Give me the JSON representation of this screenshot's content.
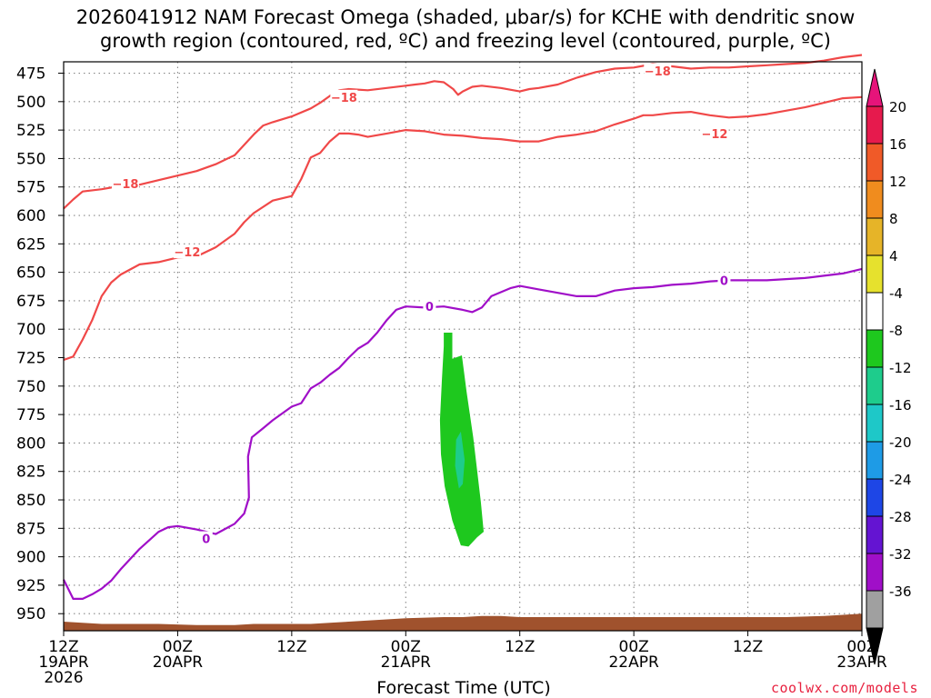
{
  "chart_data": {
    "type": "time-height contour",
    "title_line1": "2026041912 NAM Forecast Omega (shaded, μbar/s) for KCHE with dendritic snow",
    "title_line2": "growth region (contoured, red, ºC) and freezing level (contoured, purple, ºC)",
    "xlabel": "Forecast Time (UTC)",
    "credit": "coolwx.com/models",
    "x_range_hours": [
      0,
      84
    ],
    "y_range_hpa": [
      465,
      965
    ],
    "y_ticks": [
      475,
      500,
      525,
      550,
      575,
      600,
      625,
      650,
      675,
      700,
      725,
      750,
      775,
      800,
      825,
      850,
      875,
      900,
      925,
      950
    ],
    "x_ticks": [
      {
        "hour": 0,
        "line1": "12Z",
        "line2": "19APR",
        "line3": "2026"
      },
      {
        "hour": 12,
        "line1": "00Z",
        "line2": "20APR",
        "line3": ""
      },
      {
        "hour": 24,
        "line1": "12Z",
        "line2": "",
        "line3": ""
      },
      {
        "hour": 36,
        "line1": "00Z",
        "line2": "21APR",
        "line3": ""
      },
      {
        "hour": 48,
        "line1": "12Z",
        "line2": "",
        "line3": ""
      },
      {
        "hour": 60,
        "line1": "00Z",
        "line2": "22APR",
        "line3": ""
      },
      {
        "hour": 72,
        "line1": "12Z",
        "line2": "",
        "line3": ""
      },
      {
        "hour": 84,
        "line1": "00Z",
        "line2": "23APR",
        "line3": ""
      }
    ],
    "colorbar": {
      "labels": [
        "20",
        "16",
        "12",
        "8",
        "4",
        "-4",
        "-8",
        "-12",
        "-16",
        "-20",
        "-24",
        "-28",
        "-32",
        "-36"
      ],
      "colors": [
        "#e61a4d",
        "#f05a28",
        "#f08c1e",
        "#e6b428",
        "#e6e12d",
        "#ffffff",
        "#1ec81e",
        "#1ecc8c",
        "#1ec8c8",
        "#1e9be6",
        "#1e46e6",
        "#6414d2",
        "#a00fc8",
        "#a0a0a0"
      ],
      "top_arrow_color": "#e6147a",
      "bottom_arrow_color": "#000000"
    },
    "series": [
      {
        "name": "-18C isotherm",
        "color": "#f04848",
        "label": "−18",
        "label_points": [
          [
            6.5,
            572
          ],
          [
            29.5,
            496
          ],
          [
            62.5,
            473
          ]
        ],
        "points": [
          [
            0,
            594
          ],
          [
            1,
            586
          ],
          [
            2,
            579
          ],
          [
            4,
            577
          ],
          [
            6,
            574
          ],
          [
            8,
            573
          ],
          [
            10,
            569
          ],
          [
            12,
            565
          ],
          [
            14,
            561
          ],
          [
            16,
            555
          ],
          [
            18,
            547
          ],
          [
            19,
            538
          ],
          [
            20,
            529
          ],
          [
            21,
            521
          ],
          [
            22,
            518
          ],
          [
            24,
            513
          ],
          [
            26,
            506
          ],
          [
            27,
            501
          ],
          [
            28,
            495
          ],
          [
            29,
            490
          ],
          [
            30,
            489
          ],
          [
            32,
            490
          ],
          [
            34,
            488
          ],
          [
            36,
            486
          ],
          [
            37,
            485
          ],
          [
            38,
            484
          ],
          [
            39,
            482
          ],
          [
            40,
            483
          ],
          [
            41,
            489
          ],
          [
            41.5,
            494
          ],
          [
            42,
            491
          ],
          [
            43,
            487
          ],
          [
            44,
            486
          ],
          [
            46,
            488
          ],
          [
            48,
            491
          ],
          [
            49,
            489
          ],
          [
            50,
            488
          ],
          [
            52,
            485
          ],
          [
            54,
            479
          ],
          [
            56,
            474
          ],
          [
            58,
            471
          ],
          [
            60,
            470
          ],
          [
            62,
            467
          ],
          [
            64,
            469
          ],
          [
            66,
            471
          ],
          [
            68,
            470
          ],
          [
            70,
            470
          ],
          [
            72,
            469
          ],
          [
            74,
            468
          ],
          [
            76,
            467
          ],
          [
            78,
            466
          ],
          [
            80,
            464
          ],
          [
            82,
            461
          ],
          [
            84,
            459
          ]
        ]
      },
      {
        "name": "-12C isotherm",
        "color": "#f04848",
        "label": "−12",
        "label_points": [
          [
            13,
            632
          ],
          [
            68.5,
            528
          ]
        ],
        "points": [
          [
            0,
            727
          ],
          [
            1,
            724
          ],
          [
            2,
            709
          ],
          [
            3,
            692
          ],
          [
            4,
            671
          ],
          [
            5,
            659
          ],
          [
            6,
            652
          ],
          [
            8,
            643
          ],
          [
            10,
            641
          ],
          [
            12,
            637
          ],
          [
            14,
            636
          ],
          [
            16,
            628
          ],
          [
            18,
            616
          ],
          [
            19,
            606
          ],
          [
            20,
            598
          ],
          [
            22,
            587
          ],
          [
            24,
            583
          ],
          [
            25,
            568
          ],
          [
            26,
            549
          ],
          [
            27,
            545
          ],
          [
            28,
            535
          ],
          [
            29,
            528
          ],
          [
            30,
            528
          ],
          [
            31,
            529
          ],
          [
            32,
            531
          ],
          [
            34,
            528
          ],
          [
            36,
            525
          ],
          [
            38,
            526
          ],
          [
            40,
            529
          ],
          [
            42,
            530
          ],
          [
            44,
            532
          ],
          [
            46,
            533
          ],
          [
            48,
            535
          ],
          [
            50,
            535
          ],
          [
            52,
            531
          ],
          [
            54,
            529
          ],
          [
            56,
            526
          ],
          [
            58,
            520
          ],
          [
            60,
            515
          ],
          [
            61,
            512
          ],
          [
            62,
            512
          ],
          [
            64,
            510
          ],
          [
            66,
            509
          ],
          [
            68,
            512
          ],
          [
            70,
            514
          ],
          [
            72,
            513
          ],
          [
            74,
            511
          ],
          [
            76,
            508
          ],
          [
            78,
            505
          ],
          [
            80,
            501
          ],
          [
            82,
            497
          ],
          [
            84,
            496
          ]
        ]
      },
      {
        "name": "0C freezing level",
        "color": "#a00fc8",
        "label": "0",
        "label_points": [
          [
            15,
            884
          ],
          [
            38.5,
            680
          ],
          [
            69.5,
            657
          ]
        ],
        "points": [
          [
            0,
            920
          ],
          [
            1,
            937
          ],
          [
            2,
            937
          ],
          [
            3,
            933
          ],
          [
            4,
            928
          ],
          [
            5,
            921
          ],
          [
            6,
            911
          ],
          [
            8,
            893
          ],
          [
            10,
            878
          ],
          [
            11,
            874
          ],
          [
            12,
            873
          ],
          [
            14,
            876
          ],
          [
            16,
            880
          ],
          [
            18,
            871
          ],
          [
            19,
            862
          ],
          [
            19.5,
            848
          ],
          [
            19.4,
            812
          ],
          [
            19.8,
            795
          ],
          [
            21,
            787
          ],
          [
            22,
            780
          ],
          [
            24,
            768
          ],
          [
            25,
            765
          ],
          [
            26,
            752
          ],
          [
            27,
            747
          ],
          [
            28,
            740
          ],
          [
            29,
            734
          ],
          [
            30,
            725
          ],
          [
            31,
            717
          ],
          [
            32,
            712
          ],
          [
            33,
            703
          ],
          [
            34,
            692
          ],
          [
            35,
            683
          ],
          [
            36,
            680
          ],
          [
            38,
            681
          ],
          [
            40,
            680
          ],
          [
            42,
            683
          ],
          [
            43,
            685
          ],
          [
            44,
            681
          ],
          [
            45,
            671
          ],
          [
            47,
            664
          ],
          [
            48,
            662
          ],
          [
            50,
            665
          ],
          [
            52,
            668
          ],
          [
            54,
            671
          ],
          [
            56,
            671
          ],
          [
            58,
            666
          ],
          [
            60,
            664
          ],
          [
            62,
            663
          ],
          [
            64,
            661
          ],
          [
            66,
            660
          ],
          [
            68,
            658
          ],
          [
            70,
            657
          ],
          [
            72,
            657
          ],
          [
            74,
            657
          ],
          [
            76,
            656
          ],
          [
            78,
            655
          ],
          [
            80,
            653
          ],
          [
            82,
            651
          ],
          [
            84,
            647
          ]
        ]
      }
    ],
    "omega_regions": [
      {
        "range": "-8 to -4",
        "color": "#1ec81e",
        "points": [
          [
            40.0,
            703
          ],
          [
            40.9,
            703
          ],
          [
            40.9,
            726
          ],
          [
            41.9,
            723
          ],
          [
            42.4,
            755
          ],
          [
            43.1,
            795
          ],
          [
            43.9,
            852
          ],
          [
            44.2,
            878
          ],
          [
            43.5,
            883
          ],
          [
            42.6,
            891
          ],
          [
            41.8,
            890
          ],
          [
            40.9,
            868
          ],
          [
            40.1,
            838
          ],
          [
            39.7,
            810
          ],
          [
            39.6,
            780
          ],
          [
            39.8,
            745
          ],
          [
            40.0,
            715
          ]
        ]
      },
      {
        "range": "-12 to -8",
        "color": "#1ecc8c",
        "points": [
          [
            41.8,
            790
          ],
          [
            42.2,
            815
          ],
          [
            42.0,
            836
          ],
          [
            41.6,
            840
          ],
          [
            41.2,
            820
          ],
          [
            41.3,
            797
          ]
        ]
      }
    ],
    "terrain": {
      "color": "#a0522d",
      "points": [
        [
          0,
          957
        ],
        [
          2,
          958
        ],
        [
          4,
          959
        ],
        [
          10,
          959
        ],
        [
          14,
          960
        ],
        [
          18,
          960
        ],
        [
          20,
          959
        ],
        [
          26,
          959
        ],
        [
          28,
          958
        ],
        [
          30,
          957
        ],
        [
          32,
          956
        ],
        [
          34,
          955
        ],
        [
          36,
          954
        ],
        [
          40,
          953
        ],
        [
          42,
          953
        ],
        [
          44,
          952
        ],
        [
          46,
          952
        ],
        [
          48,
          953
        ],
        [
          52,
          953
        ],
        [
          60,
          953
        ],
        [
          70,
          953
        ],
        [
          76,
          953
        ],
        [
          80,
          952
        ],
        [
          82,
          951
        ],
        [
          84,
          950
        ]
      ]
    }
  }
}
